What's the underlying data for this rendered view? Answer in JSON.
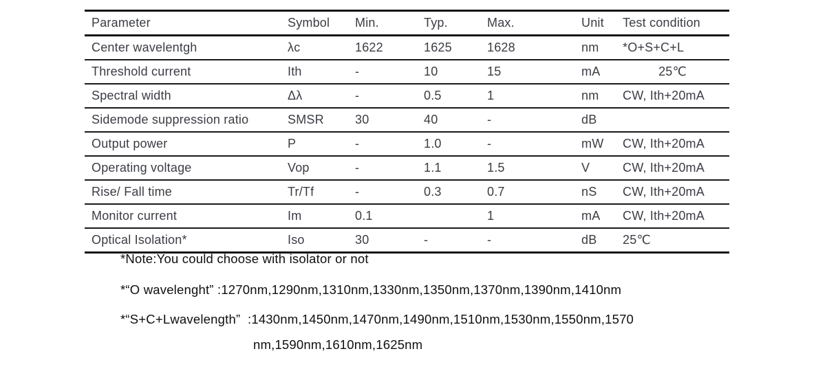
{
  "spec_table": {
    "columns": [
      "Parameter",
      "Symbol",
      "Min.",
      "Typ.",
      "Max.",
      "Unit",
      "Test condition"
    ],
    "rows": [
      [
        "Center wavelentgh",
        "λc",
        "1622",
        "1625",
        "1628",
        "nm",
        "*O+S+C+L"
      ],
      [
        "Threshold current",
        "Ith",
        "-",
        "10",
        "15",
        "mA",
        "25℃"
      ],
      [
        "Spectral width",
        "Δλ",
        "-",
        "0.5",
        "1",
        "nm",
        "CW, Ith+20mA"
      ],
      [
        "Sidemode suppression ratio",
        "SMSR",
        "30",
        "40",
        "-",
        "dB",
        ""
      ],
      [
        "Output power",
        "P",
        "-",
        "1.0",
        "-",
        "mW",
        "CW, Ith+20mA"
      ],
      [
        "Operating voltage",
        "Vop",
        "-",
        "1.1",
        "1.5",
        "V",
        "CW, Ith+20mA"
      ],
      [
        "Rise/ Fall time",
        "Tr/Tf",
        "-",
        "0.3",
        "0.7",
        "nS",
        "CW, Ith+20mA"
      ],
      [
        "Monitor current",
        "Im",
        "0.1",
        "",
        "1",
        "mA",
        "CW, Ith+20mA"
      ],
      [
        "Optical Isolation*",
        "Iso",
        "30",
        "-",
        "-",
        "dB",
        "25℃"
      ]
    ]
  },
  "notes": [
    "*Note:You could choose with isolator or not",
    "*“O wavelenght” :1270nm,1290nm,1310nm,1330nm,1350nm,1370nm,1390nm,1410nm",
    "*“S+C+Lwavelength”  :1430nm,1450nm,1470nm,1490nm,1510nm,1530nm,1550nm,1570",
    "nm,1590nm,1610nm,1625nm"
  ],
  "colors": {
    "table_text": "#3a3d43",
    "note_text": "#0f0f0f",
    "rule": "#141414"
  }
}
